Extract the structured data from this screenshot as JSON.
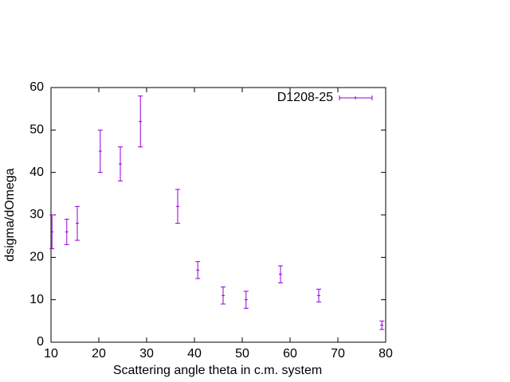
{
  "chart_data": {
    "type": "errorbar",
    "x_label": "Scattering angle theta in c.m. system",
    "y_label": "dsigma/dOmega",
    "xlim": [
      10,
      80
    ],
    "xticks": [
      10,
      20,
      30,
      40,
      50,
      60,
      70,
      80
    ],
    "ylim": [
      0,
      60
    ],
    "yticks": [
      0,
      10,
      20,
      30,
      40,
      50,
      60
    ],
    "grid": false,
    "legend": "top-right",
    "series": [
      {
        "name": "D1208-25",
        "color": "#9400d3",
        "x": [
          10.2,
          13.3,
          15.5,
          20.3,
          24.5,
          28.7,
          36.5,
          40.7,
          46,
          50.8,
          58,
          66,
          79.2
        ],
        "values": [
          26,
          26,
          28,
          45,
          42,
          52,
          32,
          17,
          11,
          10,
          16,
          11,
          4
        ],
        "errors": [
          4,
          3,
          4,
          5,
          4,
          6,
          4,
          2,
          2,
          2,
          2,
          1.5,
          1
        ]
      }
    ]
  }
}
